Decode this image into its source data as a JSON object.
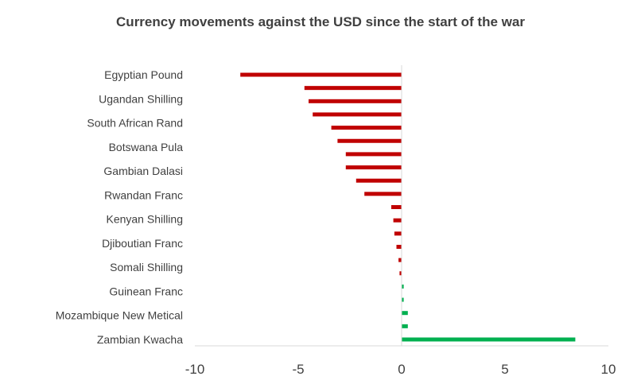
{
  "chart_data": {
    "type": "bar",
    "orientation": "horizontal",
    "title": "Currency movements against the USD since the start of the war",
    "xlabel": "",
    "ylabel": "",
    "xlim": [
      -10,
      10
    ],
    "xticks": [
      -10,
      -5,
      0,
      5,
      10
    ],
    "grid": false,
    "labeled_categories": [
      "Egyptian Pound",
      "Ugandan Shilling",
      "South African Rand",
      "Botswana Pula",
      "Gambian Dalasi",
      "Rwandan Franc",
      "Kenyan Shilling",
      "Djiboutian Franc",
      "Somali Shilling",
      "Guinean Franc",
      "Mozambique New Metical",
      "Zambian Kwacha"
    ],
    "values": [
      -7.8,
      -4.7,
      -4.5,
      -4.3,
      -3.4,
      -3.1,
      -2.7,
      -2.7,
      -2.2,
      -1.8,
      -0.5,
      -0.4,
      -0.35,
      -0.25,
      -0.15,
      -0.1,
      0.1,
      0.1,
      0.3,
      0.3,
      8.4
    ],
    "colors": {
      "negative": "#c00000",
      "positive": "#00b050"
    }
  }
}
